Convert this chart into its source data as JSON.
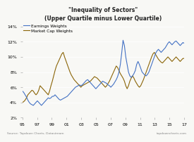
{
  "title": "\"Inequality of Sectors\"",
  "subtitle": "(Upper Quartile minus Lower Quartile)",
  "legend_labels": [
    "Earnings Weights",
    "Market Cap Weights"
  ],
  "line_colors": [
    "#4472c4",
    "#8B6508"
  ],
  "ylim": [
    0.02,
    0.145
  ],
  "yticks": [
    0.02,
    0.04,
    0.06,
    0.08,
    0.1,
    0.12,
    0.14
  ],
  "ytick_labels": [
    "2%",
    "4%",
    "6%",
    "8%",
    "10%",
    "12%",
    "14%"
  ],
  "xtick_labels": [
    "95",
    "97",
    "99",
    "01",
    "03",
    "05",
    "07",
    "09",
    "11",
    "13",
    "15",
    "17"
  ],
  "source_left": "Source: Topdown Charts, Datastream",
  "source_right": "topdowncharts.com",
  "background_color": "#f8f8f5",
  "earnings_weights": [
    0.055,
    0.053,
    0.05,
    0.047,
    0.043,
    0.04,
    0.038,
    0.037,
    0.036,
    0.038,
    0.04,
    0.042,
    0.04,
    0.038,
    0.036,
    0.038,
    0.04,
    0.042,
    0.044,
    0.046,
    0.045,
    0.046,
    0.048,
    0.048,
    0.05,
    0.048,
    0.046,
    0.044,
    0.043,
    0.044,
    0.045,
    0.046,
    0.047,
    0.048,
    0.05,
    0.052,
    0.054,
    0.056,
    0.058,
    0.06,
    0.061,
    0.062,
    0.063,
    0.062,
    0.063,
    0.065,
    0.067,
    0.069,
    0.07,
    0.068,
    0.066,
    0.064,
    0.062,
    0.06,
    0.058,
    0.06,
    0.062,
    0.064,
    0.066,
    0.068,
    0.067,
    0.066,
    0.065,
    0.063,
    0.062,
    0.06,
    0.062,
    0.064,
    0.067,
    0.07,
    0.074,
    0.08,
    0.09,
    0.105,
    0.122,
    0.115,
    0.1,
    0.09,
    0.08,
    0.075,
    0.073,
    0.075,
    0.078,
    0.082,
    0.09,
    0.094,
    0.09,
    0.085,
    0.08,
    0.078,
    0.076,
    0.075,
    0.077,
    0.08,
    0.085,
    0.09,
    0.095,
    0.1,
    0.105,
    0.108,
    0.11,
    0.108,
    0.106,
    0.108,
    0.11,
    0.112,
    0.115,
    0.118,
    0.12,
    0.118,
    0.116,
    0.118,
    0.12,
    0.121,
    0.119,
    0.117,
    0.115,
    0.117,
    0.119,
    0.118
  ],
  "market_cap_weights": [
    0.04,
    0.041,
    0.043,
    0.046,
    0.05,
    0.052,
    0.054,
    0.056,
    0.055,
    0.052,
    0.05,
    0.052,
    0.056,
    0.062,
    0.06,
    0.058,
    0.056,
    0.054,
    0.052,
    0.05,
    0.055,
    0.062,
    0.068,
    0.075,
    0.082,
    0.088,
    0.092,
    0.096,
    0.1,
    0.104,
    0.106,
    0.1,
    0.095,
    0.09,
    0.085,
    0.08,
    0.076,
    0.073,
    0.07,
    0.068,
    0.066,
    0.064,
    0.062,
    0.06,
    0.062,
    0.063,
    0.064,
    0.065,
    0.066,
    0.067,
    0.068,
    0.07,
    0.072,
    0.074,
    0.073,
    0.072,
    0.07,
    0.068,
    0.066,
    0.064,
    0.062,
    0.06,
    0.062,
    0.065,
    0.068,
    0.072,
    0.076,
    0.08,
    0.084,
    0.088,
    0.086,
    0.082,
    0.078,
    0.075,
    0.072,
    0.068,
    0.062,
    0.058,
    0.062,
    0.068,
    0.072,
    0.075,
    0.072,
    0.068,
    0.065,
    0.062,
    0.06,
    0.062,
    0.066,
    0.07,
    0.075,
    0.08,
    0.085,
    0.09,
    0.095,
    0.1,
    0.104,
    0.106,
    0.103,
    0.1,
    0.097,
    0.095,
    0.093,
    0.092,
    0.094,
    0.096,
    0.098,
    0.1,
    0.098,
    0.096,
    0.094,
    0.096,
    0.098,
    0.1,
    0.098,
    0.096,
    0.094,
    0.096,
    0.098,
    0.098
  ]
}
